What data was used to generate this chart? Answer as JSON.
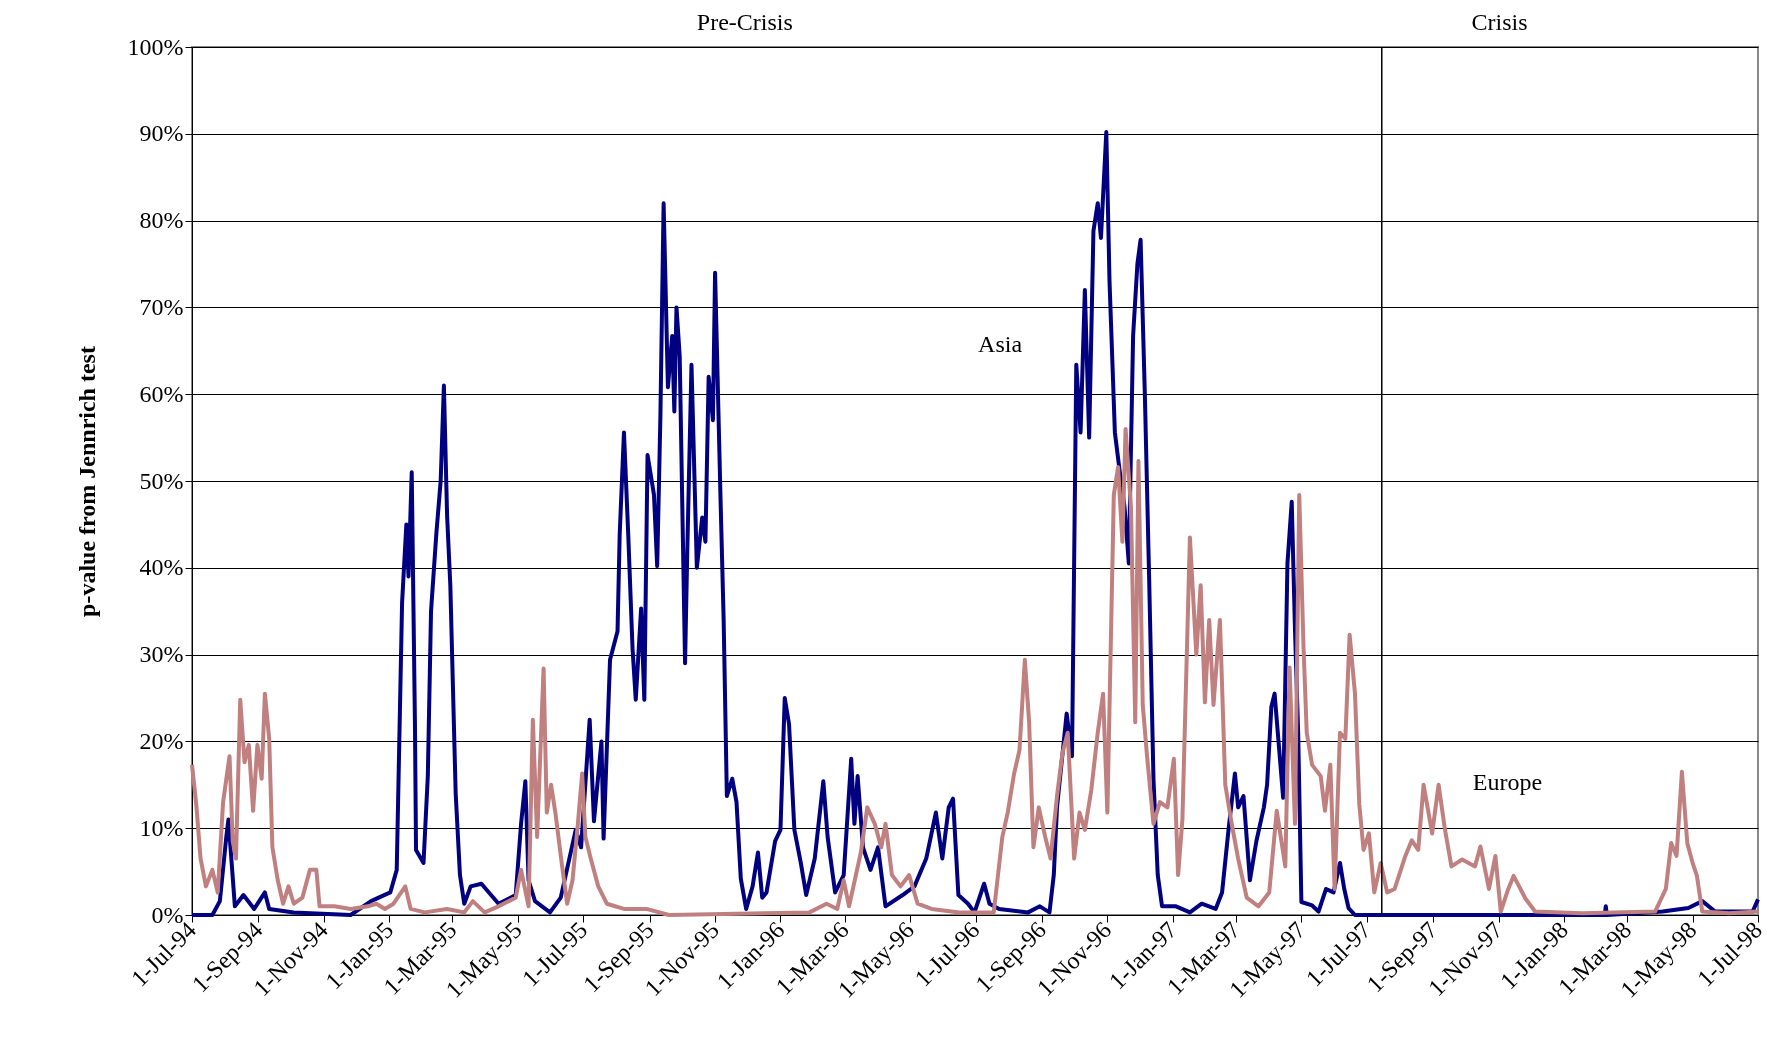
{
  "chart_data": {
    "type": "line",
    "ylabel": "p-value from Jennrich test",
    "annotations": [
      "Pre-Crisis",
      "Crisis"
    ],
    "xlim": [
      "1994-07-01",
      "1998-07-01"
    ],
    "xticks": [
      {
        "value": "1994-07-01",
        "label": "1-Jul-94"
      },
      {
        "value": "1994-09-01",
        "label": "1-Sep-94"
      },
      {
        "value": "1994-11-01",
        "label": "1-Nov-94"
      },
      {
        "value": "1995-01-01",
        "label": "1-Jan-95"
      },
      {
        "value": "1995-03-01",
        "label": "1-Mar-95"
      },
      {
        "value": "1995-05-01",
        "label": "1-May-95"
      },
      {
        "value": "1995-07-01",
        "label": "1-Jul-95"
      },
      {
        "value": "1995-09-01",
        "label": "1-Sep-95"
      },
      {
        "value": "1995-11-01",
        "label": "1-Nov-95"
      },
      {
        "value": "1996-01-01",
        "label": "1-Jan-96"
      },
      {
        "value": "1996-03-01",
        "label": "1-Mar-96"
      },
      {
        "value": "1996-05-01",
        "label": "1-May-96"
      },
      {
        "value": "1996-07-01",
        "label": "1-Jul-96"
      },
      {
        "value": "1996-09-01",
        "label": "1-Sep-96"
      },
      {
        "value": "1996-11-01",
        "label": "1-Nov-96"
      },
      {
        "value": "1997-01-01",
        "label": "1-Jan-97"
      },
      {
        "value": "1997-03-01",
        "label": "1-Mar-97"
      },
      {
        "value": "1997-05-01",
        "label": "1-May-97"
      },
      {
        "value": "1997-07-01",
        "label": "1-Jul-97"
      },
      {
        "value": "1997-09-01",
        "label": "1-Sep-97"
      },
      {
        "value": "1997-11-01",
        "label": "1-Nov-97"
      },
      {
        "value": "1998-01-01",
        "label": "1-Jan-98"
      },
      {
        "value": "1998-03-01",
        "label": "1-Mar-98"
      },
      {
        "value": "1998-05-01",
        "label": "1-May-98"
      },
      {
        "value": "1998-07-01",
        "label": "1-Jul-98"
      }
    ],
    "ylim": [
      0,
      100
    ],
    "yticks": [
      {
        "value": 0,
        "label": "0%"
      },
      {
        "value": 10,
        "label": "10%"
      },
      {
        "value": 20,
        "label": "20%"
      },
      {
        "value": 30,
        "label": "30%"
      },
      {
        "value": 40,
        "label": "40%"
      },
      {
        "value": 50,
        "label": "50%"
      },
      {
        "value": 60,
        "label": "60%"
      },
      {
        "value": 70,
        "label": "70%"
      },
      {
        "value": 80,
        "label": "80%"
      },
      {
        "value": 90,
        "label": "90%"
      },
      {
        "value": 100,
        "label": "100%"
      }
    ],
    "grid": "y",
    "legend": false,
    "marker": "none",
    "line_style": "solid",
    "ref_lines": [
      {
        "axis": "x",
        "value": "1997-07-15",
        "color": "#000000"
      }
    ],
    "series": [
      {
        "name": "Asia",
        "color": "#000080",
        "x": [
          "1994-07-01",
          "1994-07-20",
          "1994-07-27",
          "1994-08-02",
          "1994-08-04",
          "1994-08-10",
          "1994-08-18",
          "1994-08-28",
          "1994-09-07",
          "1994-09-11",
          "1994-10-04",
          "1994-11-26",
          "1994-12-15",
          "1995-01-02",
          "1995-01-08",
          "1995-01-13",
          "1995-01-17",
          "1995-01-19",
          "1995-01-22",
          "1995-01-25",
          "1995-01-26",
          "1995-02-02",
          "1995-02-06",
          "1995-02-09",
          "1995-02-14",
          "1995-02-18",
          "1995-02-21",
          "1995-02-24",
          "1995-02-27",
          "1995-03-04",
          "1995-03-08",
          "1995-03-12",
          "1995-03-18",
          "1995-03-28",
          "1995-04-13",
          "1995-04-29",
          "1995-05-04",
          "1995-05-08",
          "1995-05-11",
          "1995-05-17",
          "1995-05-31",
          "1995-06-10",
          "1995-06-24",
          "1995-06-29",
          "1995-07-07",
          "1995-07-11",
          "1995-07-18",
          "1995-07-20",
          "1995-07-26",
          "1995-08-02",
          "1995-08-04",
          "1995-08-08",
          "1995-08-12",
          "1995-08-16",
          "1995-08-19",
          "1995-08-24",
          "1995-08-27",
          "1995-08-30",
          "1995-09-05",
          "1995-09-08",
          "1995-09-11",
          "1995-09-14",
          "1995-09-18",
          "1995-09-22",
          "1995-09-24",
          "1995-09-26",
          "1995-09-29",
          "1995-10-04",
          "1995-10-06",
          "1995-10-10",
          "1995-10-15",
          "1995-10-20",
          "1995-10-23",
          "1995-10-26",
          "1995-10-30",
          "1995-11-01",
          "1995-11-06",
          "1995-11-09",
          "1995-11-12",
          "1995-11-17",
          "1995-11-21",
          "1995-11-25",
          "1995-11-30",
          "1995-12-06",
          "1995-12-11",
          "1995-12-15",
          "1995-12-19",
          "1995-12-27",
          "1996-01-01",
          "1996-01-05",
          "1996-01-09",
          "1996-01-14",
          "1996-01-20",
          "1996-01-25",
          "1996-02-02",
          "1996-02-10",
          "1996-02-14",
          "1996-02-21",
          "1996-02-29",
          "1996-03-07",
          "1996-03-10",
          "1996-03-13",
          "1996-03-18",
          "1996-03-25",
          "1996-04-01",
          "1996-04-08",
          "1996-04-24",
          "1996-05-05",
          "1996-05-16",
          "1996-05-25",
          "1996-05-31",
          "1996-06-06",
          "1996-06-10",
          "1996-06-15",
          "1996-06-24",
          "1996-06-30",
          "1996-07-09",
          "1996-07-14",
          "1996-07-23",
          "1996-08-19",
          "1996-08-30",
          "1996-09-08",
          "1996-09-12",
          "1996-09-15",
          "1996-09-24",
          "1996-09-29",
          "1996-10-03",
          "1996-10-07",
          "1996-10-11",
          "1996-10-15",
          "1996-10-19",
          "1996-10-23",
          "1996-10-26",
          "1996-10-31",
          "1996-11-03",
          "1996-11-08",
          "1996-11-12",
          "1996-11-17",
          "1996-11-21",
          "1996-11-25",
          "1996-11-29",
          "1996-12-02",
          "1996-12-06",
          "1996-12-10",
          "1996-12-14",
          "1996-12-18",
          "1996-12-22",
          "1997-01-04",
          "1997-01-17",
          "1997-01-28",
          "1997-02-10",
          "1997-02-16",
          "1997-02-22",
          "1997-02-28",
          "1997-03-03",
          "1997-03-08",
          "1997-03-14",
          "1997-03-20",
          "1997-03-27",
          "1997-03-30",
          "1997-04-03",
          "1997-04-06",
          "1997-04-10",
          "1997-04-14",
          "1997-04-18",
          "1997-04-22",
          "1997-04-25",
          "1997-04-28",
          "1997-05-01",
          "1997-05-11",
          "1997-05-17",
          "1997-05-24",
          "1997-05-31",
          "1997-06-06",
          "1997-06-10",
          "1997-06-14",
          "1997-06-20",
          "1997-10-13",
          "1998-02-08",
          "1998-02-09",
          "1998-02-10",
          "1998-04-03",
          "1998-04-27",
          "1998-05-10",
          "1998-05-22",
          "1998-06-26",
          "1998-07-01"
        ],
        "values": [
          0,
          0,
          1.6,
          9,
          11,
          1,
          2.3,
          0.7,
          2.6,
          0.7,
          0.3,
          0,
          1.6,
          2.6,
          5.2,
          36,
          45,
          39,
          51,
          22,
          7.5,
          6,
          16,
          35,
          44,
          50,
          61,
          46,
          38,
          14,
          4.6,
          1.3,
          3.3,
          3.6,
          1.3,
          2.3,
          10.5,
          15.4,
          4,
          1.6,
          0.3,
          2,
          9.8,
          7.8,
          22.5,
          10.8,
          20,
          8.8,
          29.4,
          32.7,
          43.8,
          55.6,
          43.8,
          30.7,
          24.8,
          35.3,
          24.8,
          53,
          48.4,
          40.2,
          57.5,
          82,
          60.8,
          66.7,
          58,
          70,
          64.4,
          29,
          41.5,
          63.4,
          40,
          45.8,
          43,
          62,
          57,
          74,
          48.4,
          34,
          13.7,
          15.7,
          13,
          4.2,
          0.7,
          3.3,
          7.2,
          2,
          2.6,
          8.5,
          9.8,
          25,
          22,
          9.8,
          6,
          2.3,
          6.5,
          15.4,
          9,
          2.6,
          4.6,
          18,
          10.5,
          16,
          7.8,
          5.2,
          7.8,
          1,
          2.3,
          3.3,
          6.5,
          11.8,
          6.5,
          12.4,
          13.4,
          2.3,
          1.3,
          0.3,
          3.6,
          1.3,
          0.7,
          0.3,
          1,
          0.3,
          4.6,
          12.4,
          23.2,
          18.3,
          63.4,
          55.6,
          72,
          55,
          78.8,
          82,
          78,
          90.2,
          73,
          55.6,
          51.6,
          47,
          40.5,
          66.7,
          75,
          77.8,
          59.8,
          38.6,
          15.7,
          4.6,
          1,
          1,
          0.3,
          1.3,
          0.7,
          2.6,
          9.8,
          16.3,
          12.4,
          13.7,
          4,
          8.5,
          12.4,
          15,
          24,
          25.5,
          19.5,
          13.5,
          40.5,
          47.6,
          33,
          21,
          1.5,
          1.1,
          0.4,
          3,
          2.6,
          6,
          3,
          0.8,
          0,
          0,
          0,
          1,
          0,
          0.4,
          0.8,
          1.6,
          0.4,
          0.4,
          1.8
        ]
      },
      {
        "name": "Europe",
        "color": "#c08080",
        "x": [
          "1994-07-01",
          "1994-07-05",
          "1994-07-09",
          "1994-07-14",
          "1994-07-20",
          "1994-07-25",
          "1994-07-30",
          "1994-08-05",
          "1994-08-08",
          "1994-08-11",
          "1994-08-15",
          "1994-08-19",
          "1994-08-23",
          "1994-08-27",
          "1994-08-31",
          "1994-09-04",
          "1994-09-07",
          "1994-09-11",
          "1994-09-14",
          "1994-09-19",
          "1994-09-24",
          "1994-09-29",
          "1994-10-04",
          "1994-10-12",
          "1994-10-19",
          "1994-10-25",
          "1994-10-28",
          "1994-11-11",
          "1994-11-26",
          "1994-12-12",
          "1994-12-20",
          "1994-12-28",
          "1995-01-05",
          "1995-01-16",
          "1995-01-21",
          "1995-02-03",
          "1995-02-24",
          "1995-03-12",
          "1995-03-20",
          "1995-03-31",
          "1995-04-13",
          "1995-04-29",
          "1995-05-04",
          "1995-05-11",
          "1995-05-15",
          "1995-05-19",
          "1995-05-25",
          "1995-05-28",
          "1995-06-01",
          "1995-06-05",
          "1995-06-11",
          "1995-06-16",
          "1995-06-21",
          "1995-06-26",
          "1995-06-30",
          "1995-07-03",
          "1995-07-08",
          "1995-07-15",
          "1995-07-23",
          "1995-08-08",
          "1995-08-29",
          "1995-09-19",
          "1996-01-28",
          "1996-02-13",
          "1996-02-23",
          "1996-02-29",
          "1996-03-05",
          "1996-03-16",
          "1996-03-22",
          "1996-03-29",
          "1996-04-04",
          "1996-04-08",
          "1996-04-14",
          "1996-04-22",
          "1996-04-30",
          "1996-05-08",
          "1996-05-21",
          "1996-06-16",
          "1996-07-18",
          "1996-07-26",
          "1996-07-31",
          "1996-08-06",
          "1996-08-11",
          "1996-08-16",
          "1996-08-20",
          "1996-08-24",
          "1996-08-29",
          "1996-09-04",
          "1996-09-09",
          "1996-09-15",
          "1996-09-20",
          "1996-09-25",
          "1996-10-01",
          "1996-10-06",
          "1996-10-11",
          "1996-10-17",
          "1996-10-23",
          "1996-10-28",
          "1996-11-01",
          "1996-11-07",
          "1996-11-11",
          "1996-11-15",
          "1996-11-18",
          "1996-11-23",
          "1996-11-27",
          "1996-11-30",
          "1996-12-04",
          "1996-12-08",
          "1996-12-14",
          "1996-12-20",
          "1996-12-27",
          "1997-01-02",
          "1997-01-06",
          "1997-01-10",
          "1997-01-17",
          "1997-01-23",
          "1997-01-27",
          "1997-01-31",
          "1997-02-04",
          "1997-02-08",
          "1997-02-14",
          "1997-02-19",
          "1997-02-25",
          "1997-03-03",
          "1997-03-11",
          "1997-03-22",
          "1997-04-01",
          "1997-04-08",
          "1997-04-16",
          "1997-04-20",
          "1997-04-25",
          "1997-04-29",
          "1997-05-03",
          "1997-05-06",
          "1997-05-11",
          "1997-05-19",
          "1997-05-23",
          "1997-05-28",
          "1997-06-01",
          "1997-06-06",
          "1997-06-11",
          "1997-06-15",
          "1997-06-20",
          "1997-06-24",
          "1997-06-28",
          "1997-07-03",
          "1997-07-08",
          "1997-07-14",
          "1997-07-20",
          "1997-07-27",
          "1997-08-06",
          "1997-08-12",
          "1997-08-18",
          "1997-08-23",
          "1997-08-31",
          "1997-09-06",
          "1997-09-12",
          "1997-09-18",
          "1997-09-28",
          "1997-10-10",
          "1997-10-15",
          "1997-10-23",
          "1997-10-29",
          "1997-11-03",
          "1997-11-10",
          "1997-11-15",
          "1997-11-26",
          "1997-12-05",
          "1998-01-18",
          "1998-03-27",
          "1998-04-06",
          "1998-04-11",
          "1998-04-16",
          "1998-04-21",
          "1998-04-26",
          "1998-05-01",
          "1998-05-05",
          "1998-05-10",
          "1998-06-04",
          "1998-07-01"
        ],
        "values": [
          17.3,
          12.7,
          6.5,
          3.3,
          5.2,
          2.6,
          13,
          18.3,
          8.5,
          6.5,
          24.8,
          17.6,
          19.6,
          12,
          19.6,
          15.7,
          25.5,
          20.3,
          7.8,
          4,
          1.3,
          3.3,
          1.3,
          2,
          5.2,
          5.2,
          1,
          1,
          0.7,
          1,
          1.3,
          0.7,
          1.3,
          3.3,
          0.7,
          0.3,
          0.7,
          0.3,
          1.6,
          0.3,
          1,
          2,
          5.2,
          1,
          22.5,
          9,
          28.4,
          11.8,
          15,
          11.8,
          5.9,
          1.3,
          4,
          10.5,
          16.3,
          9,
          6.5,
          3.3,
          1.3,
          0.7,
          0.7,
          0,
          0.3,
          1.3,
          0.7,
          4,
          1,
          7.2,
          12.4,
          10.5,
          7.8,
          10.5,
          4.6,
          3.3,
          4.6,
          1.3,
          0.7,
          0.3,
          0.3,
          9,
          11.8,
          16.3,
          19,
          29.4,
          22.2,
          7.8,
          12.4,
          9,
          6.5,
          13.7,
          18.6,
          21,
          6.5,
          11.8,
          9.8,
          14.4,
          21,
          25.5,
          11.8,
          48.4,
          51.6,
          43,
          56,
          47,
          22.2,
          52.3,
          24.2,
          18.3,
          10.5,
          13,
          12.4,
          18,
          4.6,
          11,
          43.5,
          30,
          38,
          24.5,
          34,
          24.2,
          34,
          15,
          10.5,
          6.5,
          2,
          1,
          2.6,
          12,
          5.6,
          28.5,
          10.5,
          48.4,
          30.8,
          21,
          17.3,
          16,
          12,
          17.3,
          3,
          21,
          20.3,
          32.3,
          25.5,
          12.8,
          7.5,
          9.4,
          2.6,
          6,
          2.6,
          3,
          6.8,
          8.6,
          7.5,
          15,
          9.4,
          15,
          9.8,
          5.6,
          6.4,
          5.6,
          7.9,
          3,
          6.8,
          0.4,
          3,
          4.5,
          1.9,
          0.4,
          0.2,
          0.4,
          3,
          8.3,
          6.8,
          16.5,
          8.3,
          6,
          4.5,
          0.4,
          0.2,
          0.4
        ]
      }
    ]
  }
}
